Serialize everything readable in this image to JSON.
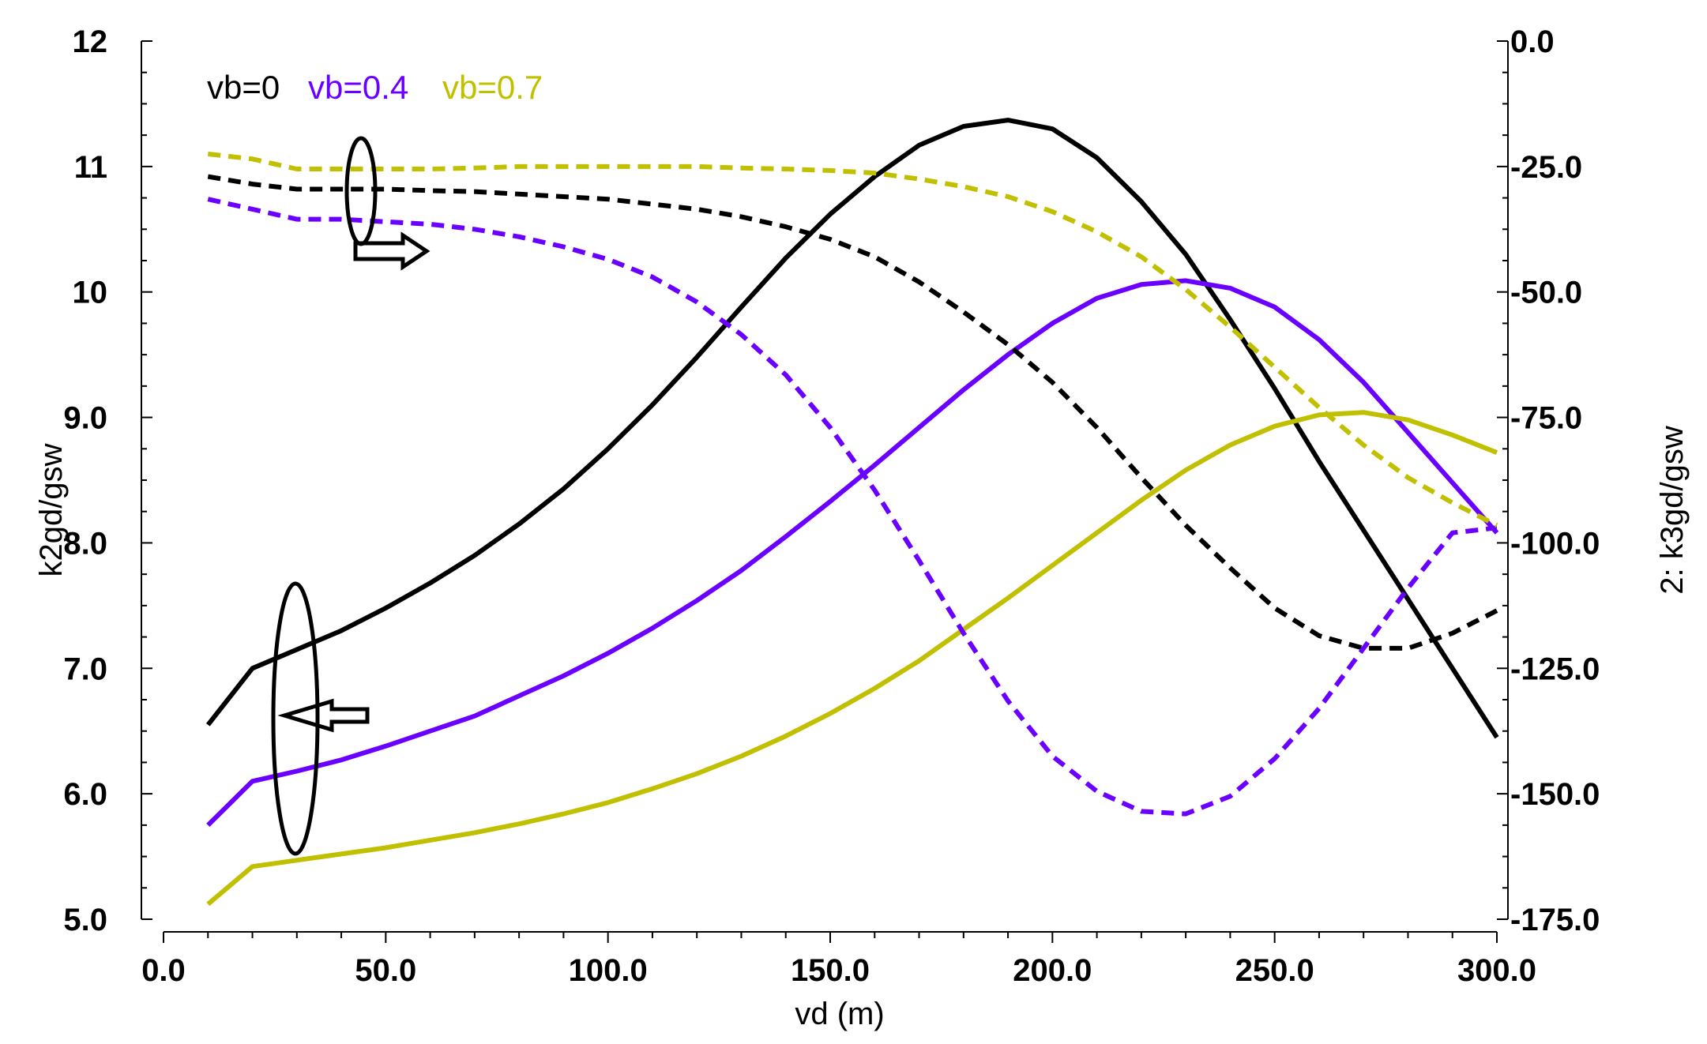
{
  "chart_data": {
    "type": "line",
    "title": "",
    "xlabel": "vd (m)",
    "ylabel_left": "k2gd/gsw",
    "ylabel_right": "2: k3gd/gsw",
    "xlim": [
      0,
      300
    ],
    "ylim_left": [
      5.0,
      12.0
    ],
    "ylim_right": [
      -175.0,
      0.0
    ],
    "x_ticks": [
      0,
      50,
      100,
      150,
      200,
      250,
      300
    ],
    "x_tick_labels": [
      "0.0",
      "50.0",
      "100.0",
      "150.0",
      "200.0",
      "250.0",
      "300.0"
    ],
    "y_left_ticks": [
      5,
      6,
      7,
      8,
      9,
      10,
      11,
      12
    ],
    "y_left_tick_labels": [
      "5.0",
      "6.0",
      "7.0",
      "8.0",
      "9.0",
      "10",
      "11",
      "12"
    ],
    "y_right_ticks": [
      -175,
      -150,
      -125,
      -100,
      -75,
      -50,
      -25,
      0
    ],
    "y_right_tick_labels": [
      "-175.0",
      "-150.0",
      "-125.0",
      "-100.0",
      "-75.0",
      "-50.0",
      "-25.0",
      "0.0"
    ],
    "grid": false,
    "legend": [
      {
        "label": "vb=0",
        "color": "#000000"
      },
      {
        "label": "vb=0.4",
        "color": "#6a00ff"
      },
      {
        "label": "vb=0.7",
        "color": "#c0c000"
      }
    ],
    "series": [
      {
        "name": "vb=0",
        "axis": "left",
        "style": "solid",
        "color": "#000000",
        "x": [
          10,
          20,
          30,
          40,
          50,
          60,
          70,
          80,
          90,
          100,
          110,
          120,
          130,
          140,
          150,
          160,
          170,
          180,
          190,
          200,
          210,
          220,
          230,
          240,
          250,
          260,
          270,
          280,
          290,
          300
        ],
        "y": [
          6.55,
          7.0,
          7.15,
          7.3,
          7.48,
          7.68,
          7.9,
          8.15,
          8.43,
          8.75,
          9.1,
          9.48,
          9.88,
          10.27,
          10.62,
          10.92,
          11.17,
          11.32,
          11.37,
          11.3,
          11.07,
          10.72,
          10.3,
          9.78,
          9.23,
          8.65,
          8.1,
          7.55,
          7.0,
          6.45
        ]
      },
      {
        "name": "vb=0.4",
        "axis": "left",
        "style": "solid",
        "color": "#6a00ff",
        "x": [
          10,
          20,
          30,
          40,
          50,
          60,
          70,
          80,
          90,
          100,
          110,
          120,
          130,
          140,
          150,
          160,
          170,
          180,
          190,
          200,
          210,
          220,
          230,
          240,
          250,
          260,
          270,
          280,
          290,
          300
        ],
        "y": [
          5.75,
          6.1,
          6.18,
          6.27,
          6.38,
          6.5,
          6.62,
          6.78,
          6.94,
          7.12,
          7.32,
          7.54,
          7.78,
          8.05,
          8.33,
          8.62,
          8.92,
          9.22,
          9.5,
          9.75,
          9.95,
          10.06,
          10.09,
          10.03,
          9.88,
          9.62,
          9.28,
          8.88,
          8.48,
          8.08
        ]
      },
      {
        "name": "vb=0.7",
        "axis": "left",
        "style": "solid",
        "color": "#c0c000",
        "x": [
          10,
          20,
          30,
          40,
          50,
          60,
          70,
          80,
          90,
          100,
          110,
          120,
          130,
          140,
          150,
          160,
          170,
          180,
          190,
          200,
          210,
          220,
          230,
          240,
          250,
          260,
          270,
          280,
          290,
          300
        ],
        "y": [
          5.12,
          5.42,
          5.47,
          5.52,
          5.57,
          5.63,
          5.69,
          5.76,
          5.84,
          5.93,
          6.04,
          6.16,
          6.3,
          6.46,
          6.64,
          6.84,
          7.06,
          7.31,
          7.56,
          7.82,
          8.08,
          8.34,
          8.58,
          8.78,
          8.93,
          9.02,
          9.04,
          8.98,
          8.86,
          8.72
        ]
      },
      {
        "name": "vb=0 (right axis)",
        "axis": "right",
        "style": "dashed",
        "color": "#000000",
        "x": [
          10,
          20,
          30,
          40,
          50,
          60,
          70,
          80,
          90,
          100,
          110,
          120,
          130,
          140,
          150,
          160,
          170,
          180,
          190,
          200,
          210,
          220,
          230,
          240,
          250,
          260,
          270,
          280,
          290,
          300
        ],
        "y": [
          -27.0,
          -28.5,
          -29.5,
          -29.5,
          -29.5,
          -29.8,
          -30.0,
          -30.5,
          -31.0,
          -31.5,
          -32.5,
          -33.5,
          -35.0,
          -37.0,
          -39.5,
          -43.0,
          -48.0,
          -54.0,
          -60.5,
          -68.0,
          -77.0,
          -87.0,
          -96.5,
          -105.0,
          -113.0,
          -118.5,
          -121.0,
          -121.0,
          -118.0,
          -113.5
        ]
      },
      {
        "name": "vb=0.4 (right axis)",
        "axis": "right",
        "style": "dashed",
        "color": "#6a00ff",
        "x": [
          10,
          20,
          30,
          40,
          50,
          60,
          70,
          80,
          90,
          100,
          110,
          120,
          130,
          140,
          150,
          160,
          170,
          180,
          190,
          200,
          210,
          220,
          230,
          240,
          250,
          260,
          270,
          280,
          290,
          300
        ],
        "y": [
          -31.5,
          -33.5,
          -35.5,
          -35.5,
          -36.0,
          -36.5,
          -37.5,
          -39.0,
          -41.0,
          -43.5,
          -47.0,
          -52.0,
          -58.5,
          -66.5,
          -77.0,
          -89.5,
          -103.5,
          -118.0,
          -131.5,
          -142.5,
          -149.5,
          -153.5,
          -154.0,
          -150.5,
          -143.0,
          -133.0,
          -121.0,
          -109.0,
          -98.0,
          -97.0
        ]
      },
      {
        "name": "vb=0.7 (right axis)",
        "axis": "right",
        "style": "dashed",
        "color": "#c0c000",
        "x": [
          10,
          20,
          30,
          40,
          50,
          60,
          70,
          80,
          90,
          100,
          110,
          120,
          130,
          140,
          150,
          160,
          170,
          180,
          190,
          200,
          210,
          220,
          230,
          240,
          250,
          260,
          270,
          280,
          290,
          300
        ],
        "y": [
          -22.5,
          -23.5,
          -25.5,
          -25.5,
          -25.5,
          -25.5,
          -25.3,
          -25.0,
          -25.0,
          -25.0,
          -25.0,
          -25.0,
          -25.3,
          -25.5,
          -25.8,
          -26.3,
          -27.5,
          -29.0,
          -31.0,
          -34.0,
          -38.0,
          -43.0,
          -49.5,
          -57.0,
          -65.0,
          -73.0,
          -80.5,
          -87.0,
          -92.0,
          -96.5
        ]
      }
    ]
  }
}
